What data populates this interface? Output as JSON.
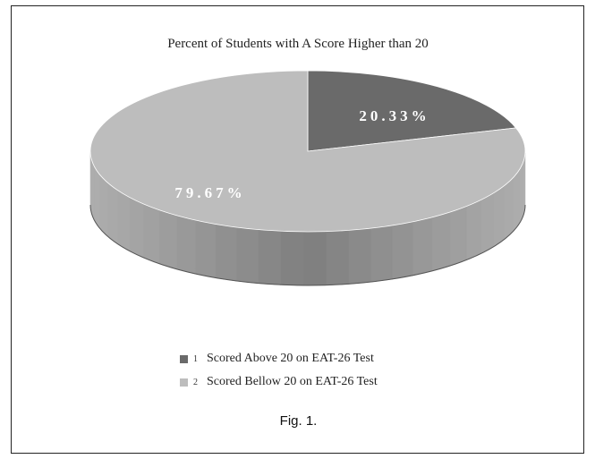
{
  "chart_data": {
    "type": "pie",
    "title": "Percent of Students with A Score Higher than 20",
    "slices": [
      {
        "index": "1",
        "label": "Scored Above 20 on EAT-26 Test",
        "value": 20.33,
        "value_label": "20.33%",
        "color": "#6a6a6a"
      },
      {
        "index": "2",
        "label": "Scored Bellow 20 on EAT-26 Test",
        "value": 79.67,
        "value_label": "79.67%",
        "color": "#bdbdbd"
      }
    ],
    "legend_position": "bottom",
    "style": "3d"
  },
  "caption": "Fig. 1."
}
